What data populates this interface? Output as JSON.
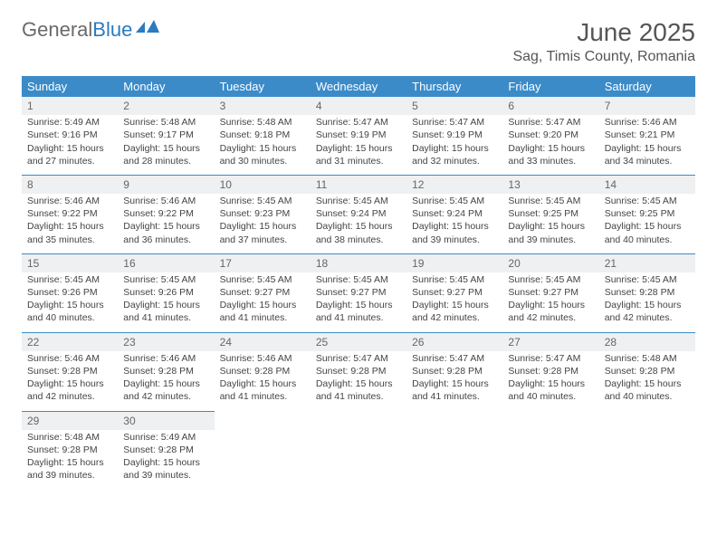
{
  "logo": {
    "text_gray": "General",
    "text_blue": "Blue"
  },
  "title": "June 2025",
  "location": "Sag, Timis County, Romania",
  "colors": {
    "header_bg": "#3b8bc9",
    "header_text": "#ffffff",
    "daynum_bg": "#eef0f1",
    "border": "#3b8bc9",
    "logo_gray": "#6a6a6a",
    "logo_blue": "#2a7bbf",
    "body_text": "#444444"
  },
  "weekdays": [
    "Sunday",
    "Monday",
    "Tuesday",
    "Wednesday",
    "Thursday",
    "Friday",
    "Saturday"
  ],
  "weeks": [
    [
      {
        "day": "1",
        "sunrise": "5:49 AM",
        "sunset": "9:16 PM",
        "daylight": "15 hours and 27 minutes."
      },
      {
        "day": "2",
        "sunrise": "5:48 AM",
        "sunset": "9:17 PM",
        "daylight": "15 hours and 28 minutes."
      },
      {
        "day": "3",
        "sunrise": "5:48 AM",
        "sunset": "9:18 PM",
        "daylight": "15 hours and 30 minutes."
      },
      {
        "day": "4",
        "sunrise": "5:47 AM",
        "sunset": "9:19 PM",
        "daylight": "15 hours and 31 minutes."
      },
      {
        "day": "5",
        "sunrise": "5:47 AM",
        "sunset": "9:19 PM",
        "daylight": "15 hours and 32 minutes."
      },
      {
        "day": "6",
        "sunrise": "5:47 AM",
        "sunset": "9:20 PM",
        "daylight": "15 hours and 33 minutes."
      },
      {
        "day": "7",
        "sunrise": "5:46 AM",
        "sunset": "9:21 PM",
        "daylight": "15 hours and 34 minutes."
      }
    ],
    [
      {
        "day": "8",
        "sunrise": "5:46 AM",
        "sunset": "9:22 PM",
        "daylight": "15 hours and 35 minutes."
      },
      {
        "day": "9",
        "sunrise": "5:46 AM",
        "sunset": "9:22 PM",
        "daylight": "15 hours and 36 minutes."
      },
      {
        "day": "10",
        "sunrise": "5:45 AM",
        "sunset": "9:23 PM",
        "daylight": "15 hours and 37 minutes."
      },
      {
        "day": "11",
        "sunrise": "5:45 AM",
        "sunset": "9:24 PM",
        "daylight": "15 hours and 38 minutes."
      },
      {
        "day": "12",
        "sunrise": "5:45 AM",
        "sunset": "9:24 PM",
        "daylight": "15 hours and 39 minutes."
      },
      {
        "day": "13",
        "sunrise": "5:45 AM",
        "sunset": "9:25 PM",
        "daylight": "15 hours and 39 minutes."
      },
      {
        "day": "14",
        "sunrise": "5:45 AM",
        "sunset": "9:25 PM",
        "daylight": "15 hours and 40 minutes."
      }
    ],
    [
      {
        "day": "15",
        "sunrise": "5:45 AM",
        "sunset": "9:26 PM",
        "daylight": "15 hours and 40 minutes."
      },
      {
        "day": "16",
        "sunrise": "5:45 AM",
        "sunset": "9:26 PM",
        "daylight": "15 hours and 41 minutes."
      },
      {
        "day": "17",
        "sunrise": "5:45 AM",
        "sunset": "9:27 PM",
        "daylight": "15 hours and 41 minutes."
      },
      {
        "day": "18",
        "sunrise": "5:45 AM",
        "sunset": "9:27 PM",
        "daylight": "15 hours and 41 minutes."
      },
      {
        "day": "19",
        "sunrise": "5:45 AM",
        "sunset": "9:27 PM",
        "daylight": "15 hours and 42 minutes."
      },
      {
        "day": "20",
        "sunrise": "5:45 AM",
        "sunset": "9:27 PM",
        "daylight": "15 hours and 42 minutes."
      },
      {
        "day": "21",
        "sunrise": "5:45 AM",
        "sunset": "9:28 PM",
        "daylight": "15 hours and 42 minutes."
      }
    ],
    [
      {
        "day": "22",
        "sunrise": "5:46 AM",
        "sunset": "9:28 PM",
        "daylight": "15 hours and 42 minutes."
      },
      {
        "day": "23",
        "sunrise": "5:46 AM",
        "sunset": "9:28 PM",
        "daylight": "15 hours and 42 minutes."
      },
      {
        "day": "24",
        "sunrise": "5:46 AM",
        "sunset": "9:28 PM",
        "daylight": "15 hours and 41 minutes."
      },
      {
        "day": "25",
        "sunrise": "5:47 AM",
        "sunset": "9:28 PM",
        "daylight": "15 hours and 41 minutes."
      },
      {
        "day": "26",
        "sunrise": "5:47 AM",
        "sunset": "9:28 PM",
        "daylight": "15 hours and 41 minutes."
      },
      {
        "day": "27",
        "sunrise": "5:47 AM",
        "sunset": "9:28 PM",
        "daylight": "15 hours and 40 minutes."
      },
      {
        "day": "28",
        "sunrise": "5:48 AM",
        "sunset": "9:28 PM",
        "daylight": "15 hours and 40 minutes."
      }
    ],
    [
      {
        "day": "29",
        "sunrise": "5:48 AM",
        "sunset": "9:28 PM",
        "daylight": "15 hours and 39 minutes."
      },
      {
        "day": "30",
        "sunrise": "5:49 AM",
        "sunset": "9:28 PM",
        "daylight": "15 hours and 39 minutes."
      },
      null,
      null,
      null,
      null,
      null
    ]
  ],
  "labels": {
    "sunrise": "Sunrise:",
    "sunset": "Sunset:",
    "daylight": "Daylight:"
  }
}
